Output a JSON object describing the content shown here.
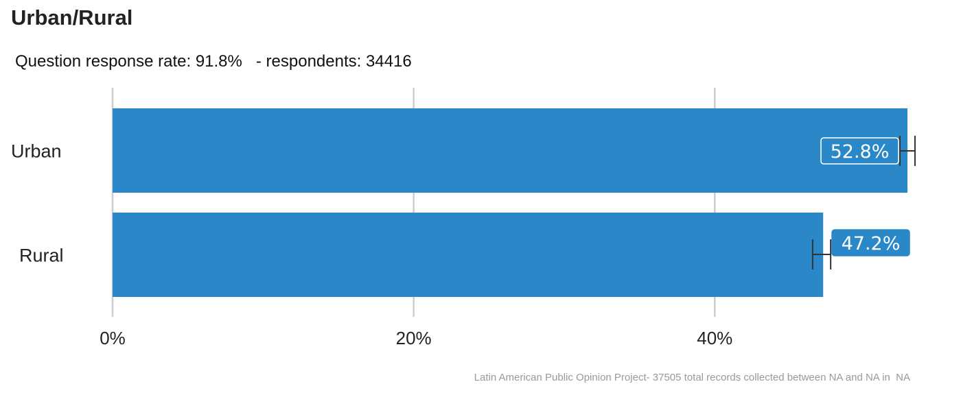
{
  "header": {
    "title": "Urban/Rural",
    "subtitle": "Question response rate: 91.8%   - respondents: 34416"
  },
  "footer": {
    "caption": "Latin American Public Opinion Project- 37505 total records collected between NA and NA in  NA"
  },
  "colors": {
    "bar": "#2b88c8",
    "grid": "#cccccc",
    "error_bar": "#333333",
    "value_text": "#ffffff"
  },
  "chart_data": {
    "type": "bar",
    "orientation": "horizontal",
    "categories": [
      "Urban",
      "Rural"
    ],
    "values": [
      52.8,
      47.2
    ],
    "value_labels": [
      "52.8%",
      "47.2%"
    ],
    "error_bars": [
      {
        "low": 52.3,
        "high": 53.3
      },
      {
        "low": 46.5,
        "high": 47.7
      }
    ],
    "xlim": [
      0,
      53.5
    ],
    "xticks": [
      0,
      20,
      40
    ],
    "xtick_labels": [
      "0%",
      "20%",
      "40%"
    ],
    "grid": true,
    "legend": false
  }
}
